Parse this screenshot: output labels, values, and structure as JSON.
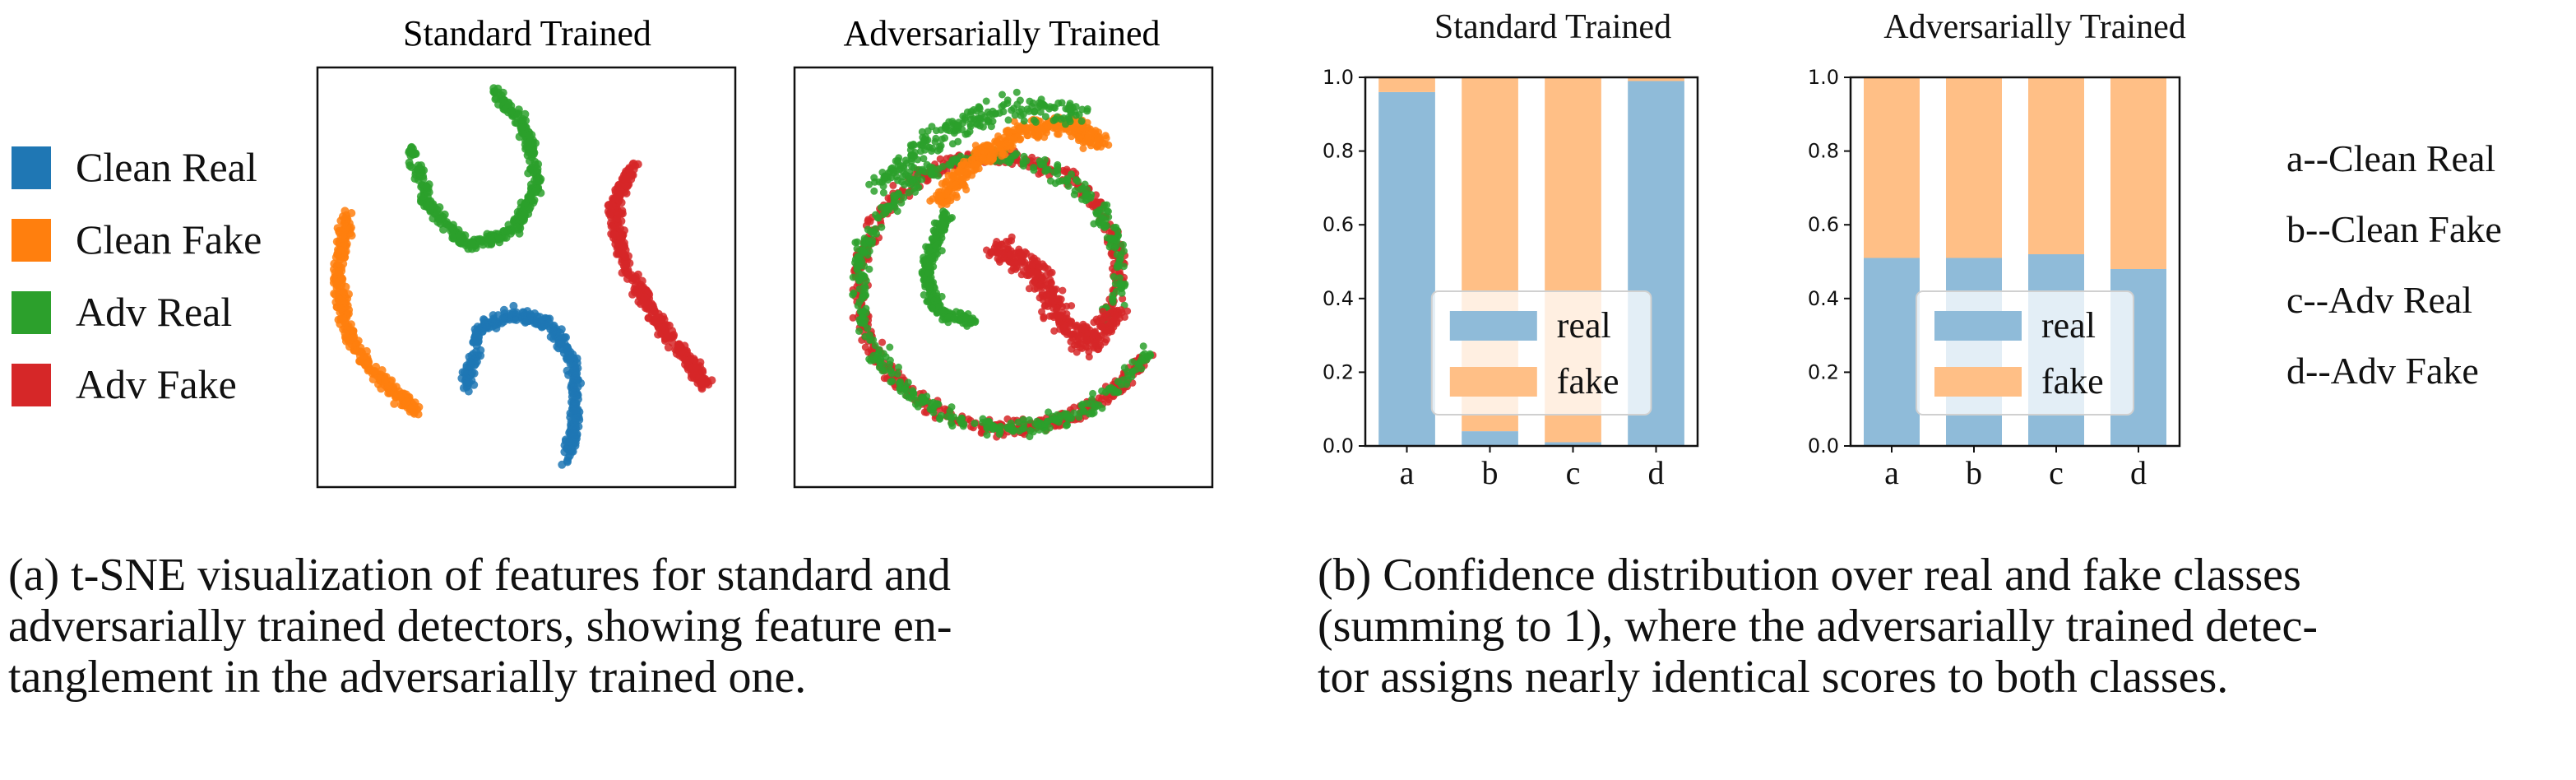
{
  "left_panel": {
    "legend": [
      {
        "label": "Clean Real",
        "color": "#1f77b4"
      },
      {
        "label": "Clean Fake",
        "color": "#ff7f0e"
      },
      {
        "label": "Adv Real",
        "color": "#2ca02c"
      },
      {
        "label": "Adv Fake",
        "color": "#d62728"
      }
    ],
    "plots": [
      {
        "title": "Standard Trained"
      },
      {
        "title": "Adversarially Trained"
      }
    ],
    "caption_lines": [
      "(a) t-SNE visualization of features for standard and",
      "adversarially trained detectors, showing feature en-",
      "tanglement in the adversarially trained one."
    ]
  },
  "right_panel": {
    "category_key": [
      "a--Clean Real",
      "b--Clean Fake",
      "c--Adv Real",
      "d--Adv Fake"
    ],
    "caption_lines": [
      "(b) Confidence distribution over real and fake classes",
      "(summing to 1), where the adversarially trained detec-",
      "tor assigns nearly identical scores to both classes."
    ]
  },
  "colors": {
    "real": "#8fbbd9",
    "fake": "#ffbf86"
  },
  "chart_data": [
    {
      "type": "scatter",
      "title": "Standard Trained",
      "series": [
        {
          "name": "Clean Real",
          "color": "#1f77b4"
        },
        {
          "name": "Clean Fake",
          "color": "#ff7f0e"
        },
        {
          "name": "Adv Real",
          "color": "#2ca02c"
        },
        {
          "name": "Adv Fake",
          "color": "#d62728"
        }
      ],
      "description_note": "four well-separated clusters"
    },
    {
      "type": "scatter",
      "title": "Adversarially Trained",
      "series": [
        {
          "name": "Clean Real",
          "color": "#1f77b4"
        },
        {
          "name": "Clean Fake",
          "color": "#ff7f0e"
        },
        {
          "name": "Adv Real",
          "color": "#2ca02c"
        },
        {
          "name": "Adv Fake",
          "color": "#d62728"
        }
      ],
      "description_note": "entangled clusters"
    },
    {
      "type": "bar",
      "stacked": true,
      "title": "Standard Trained",
      "categories": [
        "a",
        "b",
        "c",
        "d"
      ],
      "ylim": [
        0,
        1.0
      ],
      "yticks": [
        "0.0",
        "0.2",
        "0.4",
        "0.6",
        "0.8",
        "1.0"
      ],
      "legend": [
        "real",
        "fake"
      ],
      "legend_position": "lower-center",
      "series": [
        {
          "name": "real",
          "values": [
            0.96,
            0.04,
            0.01,
            0.99
          ]
        },
        {
          "name": "fake",
          "values": [
            0.04,
            0.96,
            0.99,
            0.01
          ]
        }
      ]
    },
    {
      "type": "bar",
      "stacked": true,
      "title": "Adversarially Trained",
      "categories": [
        "a",
        "b",
        "c",
        "d"
      ],
      "ylim": [
        0,
        1.0
      ],
      "yticks": [
        "0.0",
        "0.2",
        "0.4",
        "0.6",
        "0.8",
        "1.0"
      ],
      "legend": [
        "real",
        "fake"
      ],
      "legend_position": "lower-center",
      "series": [
        {
          "name": "real",
          "values": [
            0.51,
            0.51,
            0.52,
            0.48
          ]
        },
        {
          "name": "fake",
          "values": [
            0.49,
            0.49,
            0.48,
            0.52
          ]
        }
      ]
    }
  ]
}
